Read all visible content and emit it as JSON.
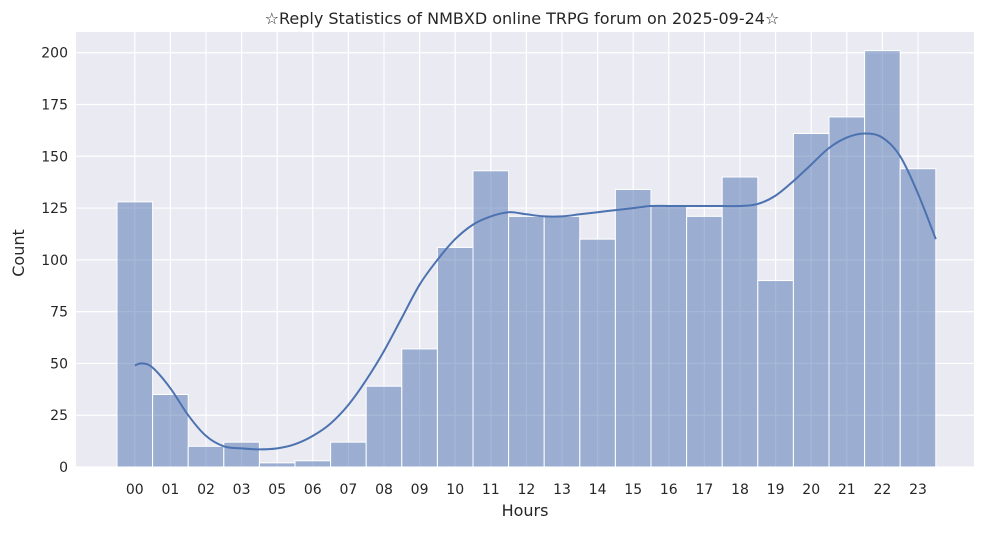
{
  "chart_data": {
    "type": "bar",
    "title": "☆Reply Statistics of NMBXD online TRPG forum on 2025-09-24☆",
    "xlabel": "Hours",
    "ylabel": "Count",
    "categories": [
      "00",
      "01",
      "02",
      "03",
      "05",
      "06",
      "07",
      "08",
      "09",
      "10",
      "11",
      "12",
      "13",
      "14",
      "15",
      "16",
      "17",
      "18",
      "19",
      "20",
      "21",
      "22",
      "23"
    ],
    "values": [
      128,
      35,
      10,
      12,
      2,
      3,
      12,
      39,
      57,
      106,
      143,
      121,
      121,
      110,
      134,
      126,
      121,
      140,
      90,
      161,
      169,
      201,
      144
    ],
    "kde_curve": [
      [
        0.0,
        49
      ],
      [
        0.2,
        50
      ],
      [
        0.5,
        48
      ],
      [
        1.0,
        38
      ],
      [
        1.5,
        25
      ],
      [
        2.0,
        15
      ],
      [
        2.5,
        10
      ],
      [
        3.0,
        9
      ],
      [
        3.5,
        8.5
      ],
      [
        4.0,
        9
      ],
      [
        4.5,
        11
      ],
      [
        5.0,
        15
      ],
      [
        5.5,
        21
      ],
      [
        6.0,
        30
      ],
      [
        6.5,
        42
      ],
      [
        7.0,
        56
      ],
      [
        7.5,
        72
      ],
      [
        8.0,
        88
      ],
      [
        8.5,
        100
      ],
      [
        9.0,
        110
      ],
      [
        9.5,
        117
      ],
      [
        10.0,
        121
      ],
      [
        10.5,
        123
      ],
      [
        11.0,
        122
      ],
      [
        11.5,
        121
      ],
      [
        12.0,
        121
      ],
      [
        12.5,
        122
      ],
      [
        13.0,
        123
      ],
      [
        13.5,
        124
      ],
      [
        14.0,
        125
      ],
      [
        14.5,
        126
      ],
      [
        15.0,
        126
      ],
      [
        15.5,
        126
      ],
      [
        16.0,
        126
      ],
      [
        16.5,
        126
      ],
      [
        17.0,
        126
      ],
      [
        17.5,
        127
      ],
      [
        18.0,
        131
      ],
      [
        18.5,
        138
      ],
      [
        19.0,
        146
      ],
      [
        19.5,
        154
      ],
      [
        20.0,
        159
      ],
      [
        20.5,
        161
      ],
      [
        21.0,
        159
      ],
      [
        21.5,
        150
      ],
      [
        22.0,
        132
      ],
      [
        22.5,
        110
      ]
    ],
    "ylim": [
      0,
      210
    ],
    "yticks": [
      0,
      25,
      50,
      75,
      100,
      125,
      150,
      175,
      200
    ],
    "grid": true,
    "colors": {
      "background": "#eaeaf2",
      "bar": "#4c72b0",
      "curve": "#4c72b0",
      "grid": "#ffffff"
    }
  }
}
